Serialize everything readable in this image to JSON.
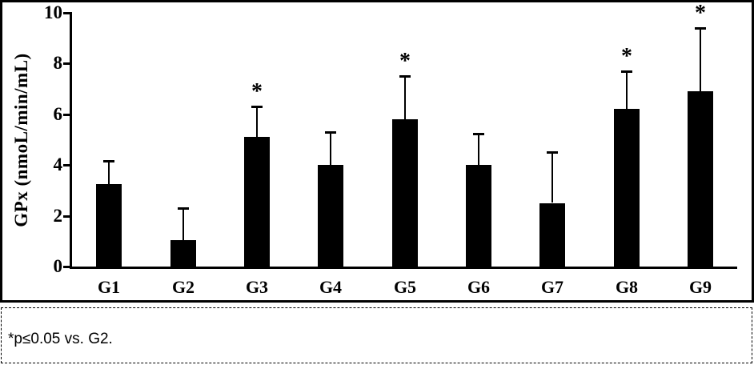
{
  "chart_data": {
    "type": "bar",
    "title": "",
    "xlabel": "",
    "ylabel": "GPx (nmoL/min/mL)",
    "ylim": [
      0,
      10
    ],
    "yticks": [
      0,
      2,
      4,
      6,
      8,
      10
    ],
    "categories": [
      "G1",
      "G2",
      "G3",
      "G4",
      "G5",
      "G6",
      "G7",
      "G8",
      "G9"
    ],
    "values": [
      3.25,
      1.05,
      5.1,
      4.0,
      5.8,
      4.0,
      2.5,
      6.2,
      6.9
    ],
    "error_upper": [
      0.9,
      1.25,
      1.2,
      1.3,
      1.7,
      1.25,
      2.0,
      1.5,
      2.5
    ],
    "significant": [
      false,
      false,
      true,
      false,
      true,
      false,
      false,
      true,
      true
    ],
    "significance_marker": "*",
    "bar_color": "#000000",
    "axis_color": "#000000",
    "background_color": "#ffffff",
    "grid": false,
    "legend": null
  },
  "footnote": {
    "text": "*p≤0.05 vs. G2."
  }
}
